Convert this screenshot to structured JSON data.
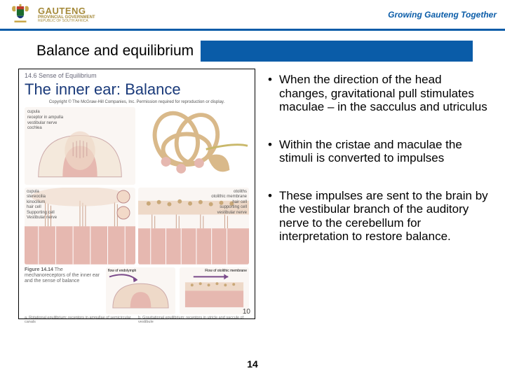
{
  "colors": {
    "header_rule": "#0a5ca8",
    "title_bar": "#0a5ca8",
    "fig_title": "#1a3a7a",
    "tagline": "#0a5ca8",
    "logo_text": "#a58a3a",
    "illus_pink": "#e6b8b0",
    "illus_tan": "#d9b98a",
    "illus_purple": "#7a4a8a"
  },
  "header": {
    "brand_main": "GAUTENG",
    "brand_sub1": "PROVINCIAL GOVERNMENT",
    "brand_sub2": "REPUBLIC OF SOUTH AFRICA",
    "tagline": "Growing Gauteng Together"
  },
  "title": "Balance and equilibrium",
  "figure": {
    "section_label": "14.6 Sense of Equilibrium",
    "title": "The inner ear: Balance",
    "credit": "Copyright © The McGraw-Hill Companies, Inc. Permission required for reproduction or display.",
    "caption_heading": "Figure 14.14",
    "caption_body": "The mechanoreceptors of the inner ear and the sense of balance",
    "footer_a": "a. Rotational equilibrium: receptors in ampullae of semicircular canals",
    "footer_b": "b. Gravitational equilibrium: receptors in utricle and saccule of vestibule",
    "page_in_fig": "10",
    "labels_tl": [
      "cupula",
      "receptor in ampulla",
      "vestibular nerve",
      "cochlea"
    ],
    "labels_tr": [],
    "labels_ml": [
      "cupula",
      "stereocilia",
      "kinocilium",
      "hair cell",
      "Supporting cell",
      "Vestibular nerve"
    ],
    "labels_mr": [
      "otoliths",
      "otolithic membrane",
      "hair cell",
      "supporting cell",
      "vestibular nerve"
    ],
    "labels_bl": "flow of endolymph",
    "labels_br": "Flow of otolithic membrane",
    "center_face": "kinocilium"
  },
  "bullets": [
    "When the direction of the head changes, gravitational pull stimulates maculae – in the sacculus and utriculus",
    "Within the cristae and maculae the stimuli is converted to impulses",
    "These impulses are sent to the brain by the vestibular branch of the auditory nerve to the cerebellum for interpretation to restore balance."
  ],
  "page_number": "14"
}
